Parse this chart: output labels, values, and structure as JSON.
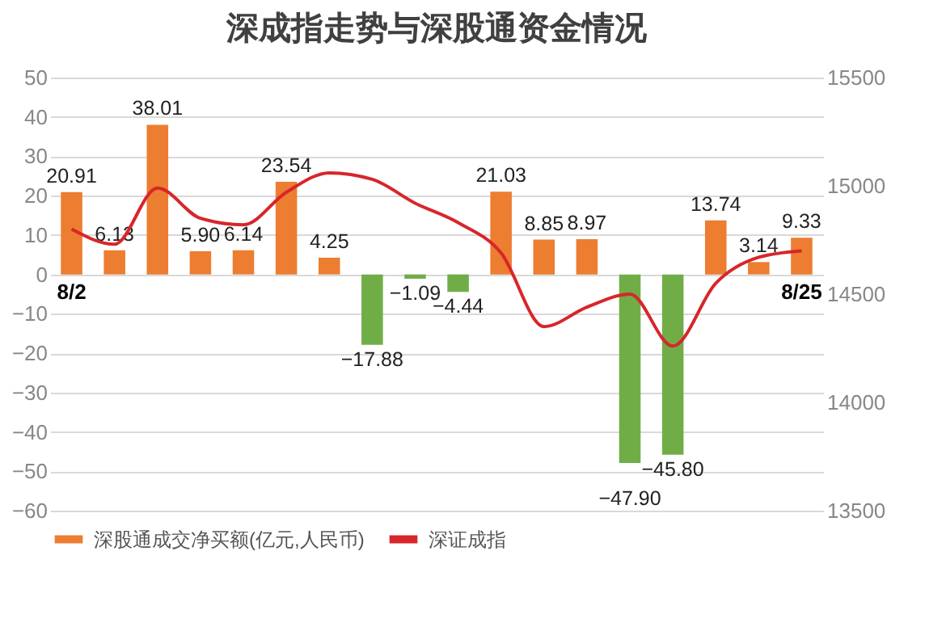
{
  "chart_data": {
    "type": "bar",
    "title": "深成指走势与深股通资金情况",
    "categories": [
      "8/2",
      null,
      null,
      null,
      null,
      null,
      null,
      null,
      null,
      null,
      null,
      null,
      null,
      null,
      null,
      null,
      null,
      "8/25"
    ],
    "series": [
      {
        "name": "深股通成交净买额(亿元,人民币)",
        "color": "#ed7d31",
        "colors": [
          "#ed7d31",
          "#ed7d31",
          "#ed7d31",
          "#ed7d31",
          "#ed7d31",
          "#ed7d31",
          "#ed7d31",
          "#70ad47",
          "#70ad47",
          "#70ad47",
          "#ed7d31",
          "#ed7d31",
          "#ed7d31",
          "#70ad47",
          "#70ad47",
          "#ed7d31",
          "#ed7d31",
          "#ed7d31"
        ],
        "values": [
          20.91,
          6.13,
          38.01,
          5.9,
          6.14,
          23.54,
          4.25,
          -17.88,
          -1.09,
          -4.44,
          21.03,
          8.85,
          8.97,
          -47.9,
          -45.8,
          13.74,
          3.14,
          9.33
        ],
        "value_labels": [
          "20.91",
          "6.13",
          "38.01",
          "5.90",
          "6.14",
          "23.54",
          "4.25",
          "−17.88",
          "−1.09",
          "−4.44",
          "21.03",
          "8.85",
          "8.97",
          "−47.90",
          "−45.80",
          "13.74",
          "3.14",
          "9.33"
        ]
      },
      {
        "name": "深证成指",
        "type": "line",
        "axis": "y2",
        "color": "#d7262b",
        "values": [
          14800,
          14730,
          14990,
          14850,
          14820,
          14970,
          15060,
          15030,
          14920,
          14830,
          14690,
          14350,
          14440,
          14500,
          14260,
          14550,
          14670,
          14700
        ]
      }
    ],
    "ylim": [
      -60,
      50
    ],
    "yticks": [
      -60,
      -50,
      -40,
      -30,
      -20,
      -10,
      0,
      10,
      20,
      30,
      40,
      50
    ],
    "y2lim": [
      13500,
      15500
    ],
    "y2ticks": [
      13500,
      14000,
      14500,
      15000,
      15500
    ],
    "grid": "y",
    "legend": "bottom"
  }
}
